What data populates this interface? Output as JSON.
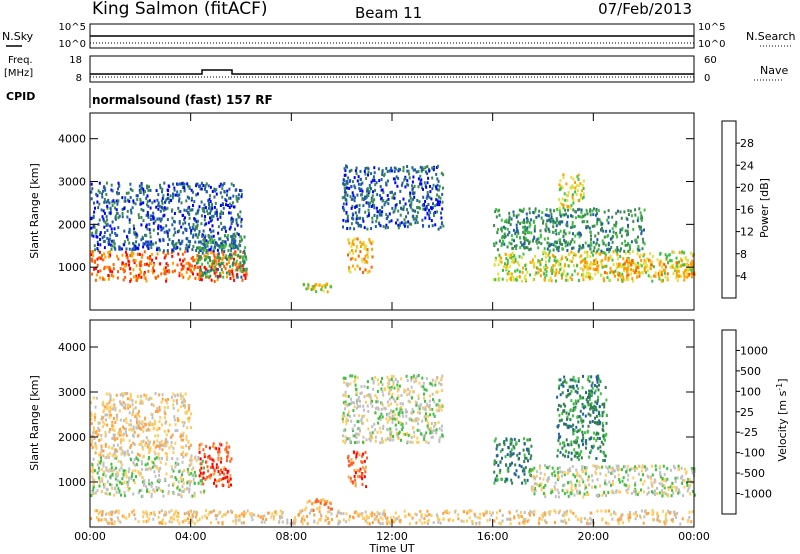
{
  "header": {
    "site": "King Salmon (fitACF)",
    "beam": "Beam 11",
    "date": "07/Feb/2013"
  },
  "panels": {
    "nsky_label": "N.Sky",
    "nsky_ticks": [
      "10^5",
      "10^0"
    ],
    "nsearch_label": "N.Search",
    "nsearch_ticks": [
      "10^5",
      "10^0"
    ],
    "freq_label_1": "Freq.",
    "freq_label_2": "[MHz]",
    "freq_ticks": [
      "18",
      "8"
    ],
    "nave_label": "Nave",
    "nave_ticks": [
      "60",
      "0"
    ],
    "cpid_label": "CPID",
    "cpid_text": "normalsound (fast) 157 RF"
  },
  "colors": {
    "power_scale": [
      "#0000ff",
      "#2060a0",
      "#3a8a50",
      "#40c040",
      "#e0e040",
      "#ffa000",
      "#ff6000",
      "#ff0000"
    ],
    "velocity_scale": [
      "#ff0000",
      "#ff6020",
      "#ffa040",
      "#ffcc60",
      "#c0c0c0",
      "#40c040",
      "#308050",
      "#2060a0",
      "#1040c0"
    ],
    "ground_scatter": "#c0c0c0"
  },
  "chart_data": [
    {
      "type": "heatmap",
      "name": "power",
      "ylabel": "Slant Range [km]",
      "yticks": [
        "1000",
        "2000",
        "3000",
        "4000"
      ],
      "ylim": [
        0,
        4600
      ],
      "colorbar_label": "Power [dB]",
      "colorbar_ticks": [
        "4",
        "8",
        "12",
        "16",
        "20",
        "24",
        "28"
      ],
      "bands": [
        {
          "t0": 0.0,
          "t1": 6.2,
          "r0": 700,
          "r1": 1400,
          "level": 6
        },
        {
          "t0": 0.0,
          "t1": 6.0,
          "r0": 1400,
          "r1": 3000,
          "level": 1
        },
        {
          "t0": 4.2,
          "t1": 6.2,
          "r0": 800,
          "r1": 1800,
          "level": 2
        },
        {
          "t0": 8.4,
          "t1": 9.6,
          "r0": 450,
          "r1": 650,
          "level": 4
        },
        {
          "t0": 10.2,
          "t1": 11.2,
          "r0": 900,
          "r1": 1700,
          "level": 5
        },
        {
          "t0": 10.0,
          "t1": 14.0,
          "r0": 1900,
          "r1": 3400,
          "level": 1
        },
        {
          "t0": 16.0,
          "t1": 24.0,
          "r0": 700,
          "r1": 1400,
          "level": 4
        },
        {
          "t0": 16.0,
          "t1": 22.0,
          "r0": 1400,
          "r1": 2400,
          "level": 2
        },
        {
          "t0": 18.6,
          "t1": 19.6,
          "r0": 2400,
          "r1": 3200,
          "level": 4
        },
        {
          "t0": 19.5,
          "t1": 24.0,
          "r0": 800,
          "r1": 1200,
          "level": 5
        }
      ]
    },
    {
      "type": "heatmap",
      "name": "velocity",
      "ylabel": "Slant Range [km]",
      "xlabel": "Time UT",
      "yticks": [
        "1000",
        "2000",
        "3000",
        "4000"
      ],
      "ylim": [
        0,
        4600
      ],
      "xticks": [
        "00:00",
        "04:00",
        "08:00",
        "12:00",
        "16:00",
        "20:00",
        "00:00"
      ],
      "xlim": [
        0,
        24
      ],
      "colorbar_label": "Velocity [m s^-1]",
      "colorbar_ticks": [
        "1000",
        "500",
        "100",
        "25",
        "-25",
        "-100",
        "-500",
        "-1000"
      ],
      "bands": [
        {
          "t0": 0.0,
          "t1": 4.5,
          "r0": 700,
          "r1": 1600,
          "level": 4
        },
        {
          "t0": 0.0,
          "t1": 4.0,
          "r0": 1600,
          "r1": 3000,
          "level": 3
        },
        {
          "t0": 4.3,
          "t1": 5.6,
          "r0": 900,
          "r1": 1900,
          "level": 1
        },
        {
          "t0": 8.5,
          "t1": 9.6,
          "r0": 400,
          "r1": 650,
          "level": 2
        },
        {
          "t0": 10.2,
          "t1": 11.0,
          "r0": 900,
          "r1": 1700,
          "level": 1
        },
        {
          "t0": 10.0,
          "t1": 14.0,
          "r0": 1900,
          "r1": 3400,
          "level": 4
        },
        {
          "t0": 16.0,
          "t1": 17.5,
          "r0": 1000,
          "r1": 2000,
          "level": 6
        },
        {
          "t0": 17.5,
          "t1": 24.0,
          "r0": 700,
          "r1": 1400,
          "level": 4
        },
        {
          "t0": 18.5,
          "t1": 20.5,
          "r0": 1500,
          "r1": 3400,
          "level": 6
        },
        {
          "t0": 0.0,
          "t1": 24.0,
          "r0": 100,
          "r1": 400,
          "level": 3
        }
      ]
    }
  ]
}
